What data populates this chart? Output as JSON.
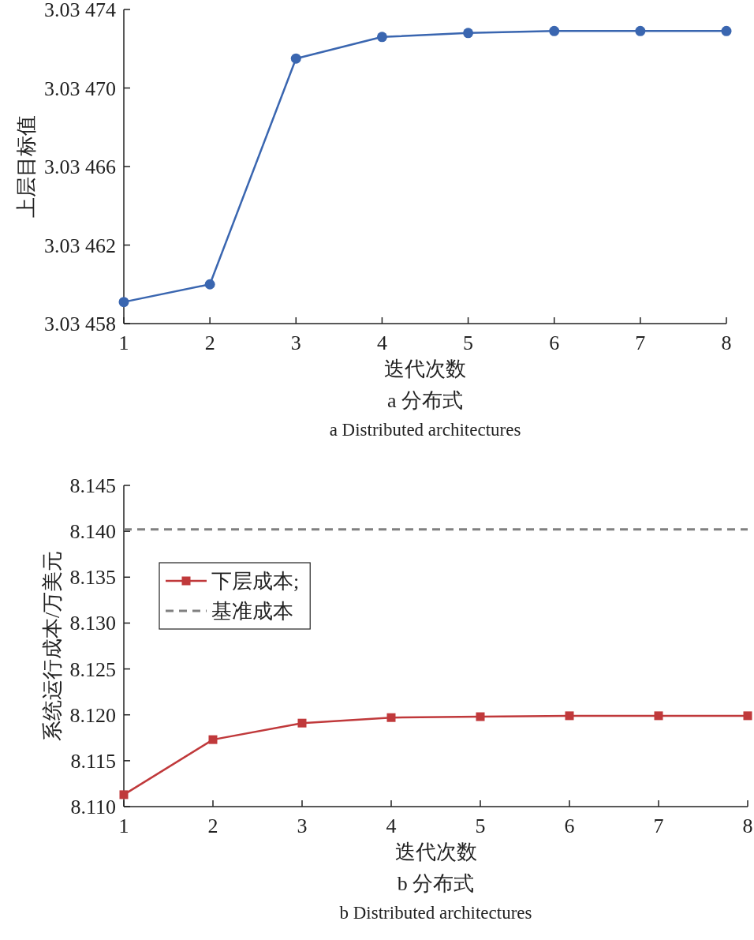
{
  "chart_data": [
    {
      "type": "line",
      "xlabel": "迭代次数",
      "ylabel": "上层目标值",
      "title": "a  分布式",
      "subtitle": "a  Distributed architectures",
      "x": [
        1,
        2,
        3,
        4,
        5,
        6,
        7,
        8
      ],
      "series": [
        {
          "color": "#3a66b0",
          "values": [
            3.034591,
            3.0346,
            3.034715,
            3.034726,
            3.034728,
            3.034729,
            3.034729,
            3.034729
          ]
        }
      ],
      "xlim": [
        1,
        8
      ],
      "xticks": [
        1,
        2,
        3,
        4,
        5,
        6,
        7,
        8
      ],
      "ylim": [
        3.03458,
        3.03474
      ],
      "yticks": [
        {
          "value": 3.03458,
          "label": "3.03 458"
        },
        {
          "value": 3.03462,
          "label": "3.03 462"
        },
        {
          "value": 3.03466,
          "label": "3.03 466"
        },
        {
          "value": 3.0347,
          "label": "3.03 470"
        },
        {
          "value": 3.03474,
          "label": "3.03 474"
        }
      ],
      "marker": "circle",
      "line_style": "solid"
    },
    {
      "type": "line",
      "xlabel": "迭代次数",
      "ylabel": "系统运行成本/万美元",
      "title": "b  分布式",
      "subtitle": "b  Distributed architectures",
      "x": [
        1,
        2,
        3,
        4,
        5,
        6,
        7,
        8
      ],
      "series": [
        {
          "name": "下层成本;",
          "color": "#c0393b",
          "values": [
            8.1113,
            8.1173,
            8.1191,
            8.1197,
            8.1198,
            8.1199,
            8.1199,
            8.1199
          ]
        }
      ],
      "ref_lines": [
        {
          "axis": "y",
          "value": 8.1402,
          "label": "基准成本",
          "color": "#808080",
          "line_style": "dashed"
        }
      ],
      "xlim": [
        1,
        8
      ],
      "xticks": [
        1,
        2,
        3,
        4,
        5,
        6,
        7,
        8
      ],
      "ylim": [
        8.11,
        8.145
      ],
      "yticks": [
        {
          "value": 8.11,
          "label": "8.110"
        },
        {
          "value": 8.115,
          "label": "8.115"
        },
        {
          "value": 8.12,
          "label": "8.120"
        },
        {
          "value": 8.125,
          "label": "8.125"
        },
        {
          "value": 8.13,
          "label": "8.130"
        },
        {
          "value": 8.135,
          "label": "8.135"
        },
        {
          "value": 8.14,
          "label": "8.140"
        },
        {
          "value": 8.145,
          "label": "8.145"
        }
      ],
      "marker": "square",
      "line_style": "solid",
      "legend": "top left"
    }
  ]
}
